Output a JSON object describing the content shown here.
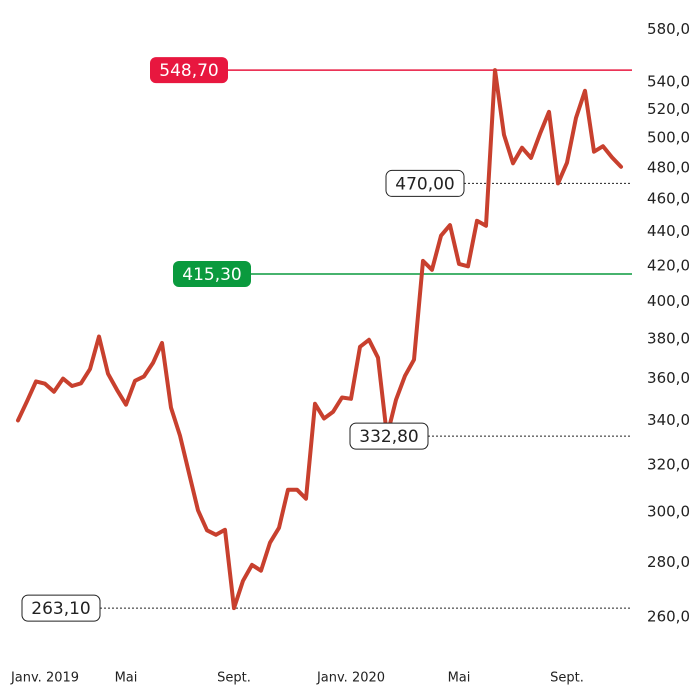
{
  "chart_data": {
    "type": "line",
    "categories": [
      null,
      null,
      null,
      "Janv. 2019",
      null,
      null,
      null,
      null,
      null,
      null,
      null,
      null,
      "Mai",
      null,
      null,
      null,
      null,
      null,
      null,
      null,
      null,
      null,
      null,
      null,
      "Sept.",
      null,
      null,
      null,
      null,
      null,
      null,
      null,
      null,
      null,
      null,
      null,
      null,
      "Janv. 2020",
      null,
      null,
      null,
      null,
      null,
      null,
      null,
      null,
      null,
      null,
      null,
      "Mai",
      null,
      null,
      null,
      null,
      null,
      null,
      null,
      null,
      null,
      null,
      null,
      "Sept.",
      null,
      null,
      null,
      null,
      null,
      null
    ],
    "series": [
      {
        "color": "#c8402e",
        "values": [
          340,
          349,
          358.6,
          357.5,
          353.6,
          360,
          356.4,
          357.7,
          364.7,
          381.3,
          362.4,
          354.5,
          347.4,
          358.9,
          361.1,
          367.8,
          378,
          346,
          333,
          316.4,
          300.7,
          292.6,
          290.8,
          292.8,
          263.1,
          273.1,
          279.1,
          276.9,
          287.7,
          293.6,
          309.3,
          309.3,
          305.5,
          347.8,
          340.9,
          344,
          350.8,
          350.2,
          376,
          379.6,
          370.4,
          332.8,
          349.7,
          361.4,
          369.4,
          422.8,
          417.7,
          437.6,
          444,
          421.1,
          419.7,
          446.6,
          443.6,
          548.7,
          502.3,
          483.1,
          493.5,
          486.7,
          503,
          518.3,
          470,
          483.5,
          514,
          533.4,
          490.8,
          494.5,
          487,
          480.8
        ]
      }
    ],
    "log_scale": true,
    "ylim": [
      255,
      590
    ],
    "yticks": [
      {
        "value": 260,
        "label": "260,0"
      },
      {
        "value": 280,
        "label": "280,0"
      },
      {
        "value": 300,
        "label": "300,0"
      },
      {
        "value": 320,
        "label": "320,0"
      },
      {
        "value": 340,
        "label": "340,0"
      },
      {
        "value": 360,
        "label": "360,0"
      },
      {
        "value": 380,
        "label": "380,0"
      },
      {
        "value": 400,
        "label": "400,0"
      },
      {
        "value": 420,
        "label": "420,0"
      },
      {
        "value": 440,
        "label": "440,0"
      },
      {
        "value": 460,
        "label": "460,0"
      },
      {
        "value": 480,
        "label": "480,0"
      },
      {
        "value": 500,
        "label": "500,0"
      },
      {
        "value": 520,
        "label": "520,0"
      },
      {
        "value": 540,
        "label": "540,0"
      },
      {
        "value": 580,
        "label": "580,0"
      }
    ],
    "annotations": [
      {
        "value": 548.7,
        "label": "548,70",
        "color": "#e8173f",
        "style": "solid"
      },
      {
        "value": 415.3,
        "label": "415,30",
        "color": "#0a9a3e",
        "style": "solid"
      },
      {
        "value": 470,
        "label": "470,00",
        "color": "#222222",
        "style": "dashed"
      },
      {
        "value": 332.8,
        "label": "332,80",
        "color": "#222222",
        "style": "dashed"
      },
      {
        "value": 263.1,
        "label": "263,10",
        "color": "#222222",
        "style": "dashed"
      }
    ]
  }
}
